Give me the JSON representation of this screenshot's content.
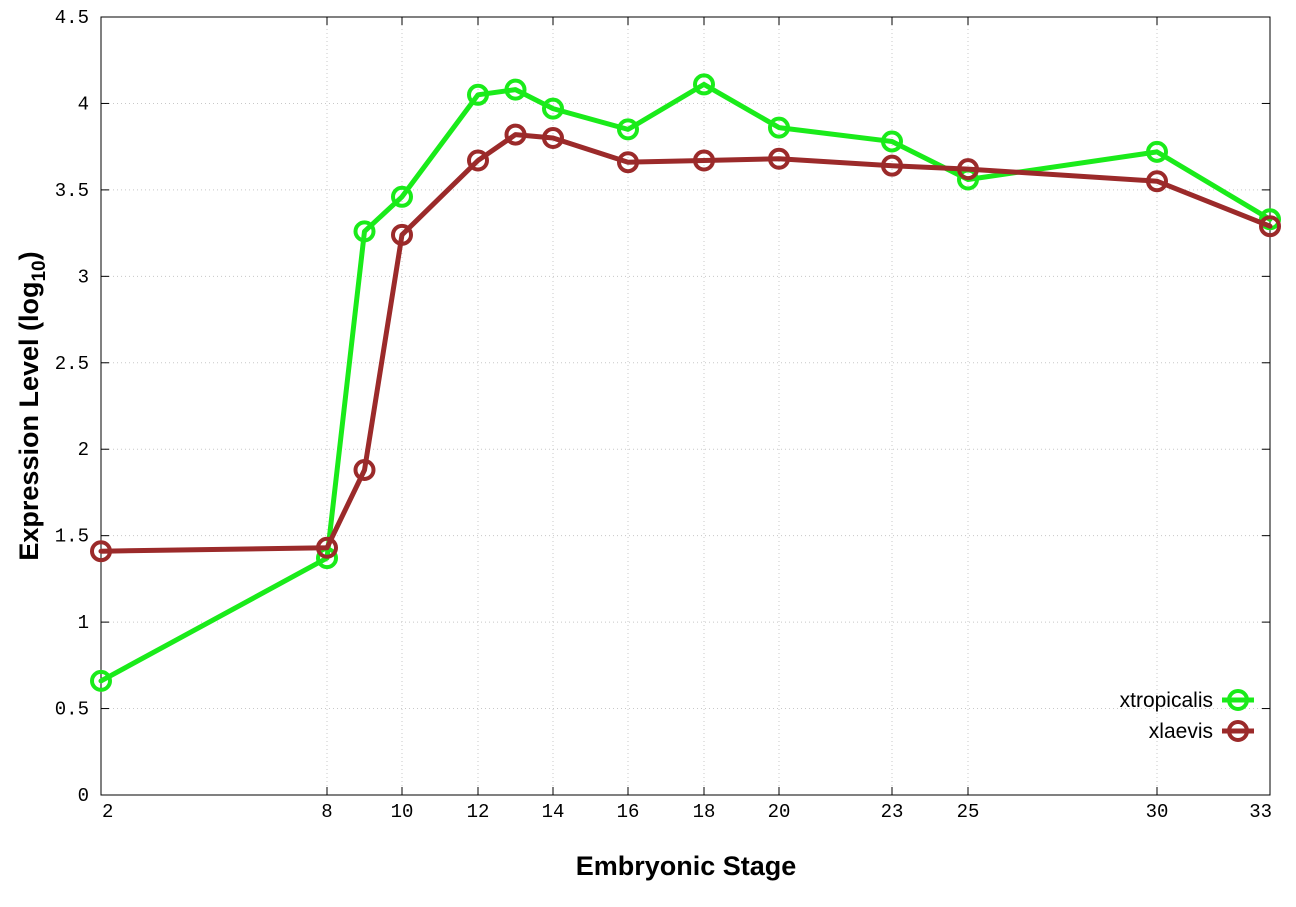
{
  "chart_data": {
    "type": "line",
    "title": "",
    "xlabel": "Embryonic Stage",
    "ylabel_main": "Expression Level (log",
    "ylabel_sub": "10",
    "ylabel_close": ")",
    "x_ticks": [
      2,
      8,
      10,
      12,
      14,
      16,
      18,
      20,
      23,
      25,
      30,
      33
    ],
    "x_tick_labels": [
      "2",
      "8",
      "10",
      "12",
      "14",
      "16",
      "18",
      "20",
      "23",
      "25",
      "30",
      "33"
    ],
    "y_ticks": [
      0,
      0.5,
      1,
      1.5,
      2,
      2.5,
      3,
      3.5,
      4,
      4.5
    ],
    "y_tick_labels": [
      "0",
      "0.5",
      "1",
      "1.5",
      "2",
      "2.5",
      "3",
      "3.5",
      "4",
      "4.5"
    ],
    "ylim": [
      0,
      4.5
    ],
    "grid": true,
    "legend_position": "bottom-right",
    "series": [
      {
        "name": "xtropicalis",
        "color": "#1aeb1a",
        "x": [
          2,
          8,
          9,
          10,
          12,
          13,
          14,
          16,
          18,
          20,
          23,
          25,
          30,
          33
        ],
        "values": [
          0.66,
          1.37,
          3.26,
          3.46,
          4.05,
          4.08,
          3.97,
          3.85,
          4.11,
          3.86,
          3.78,
          3.56,
          3.72,
          3.33
        ]
      },
      {
        "name": "xlaevis",
        "color": "#9b2a2a",
        "x": [
          2,
          8,
          9,
          10,
          12,
          13,
          14,
          16,
          18,
          20,
          23,
          25,
          30,
          33
        ],
        "values": [
          1.41,
          1.43,
          1.88,
          3.24,
          3.67,
          3.82,
          3.8,
          3.66,
          3.67,
          3.68,
          3.64,
          3.62,
          3.55,
          3.29
        ]
      }
    ]
  }
}
